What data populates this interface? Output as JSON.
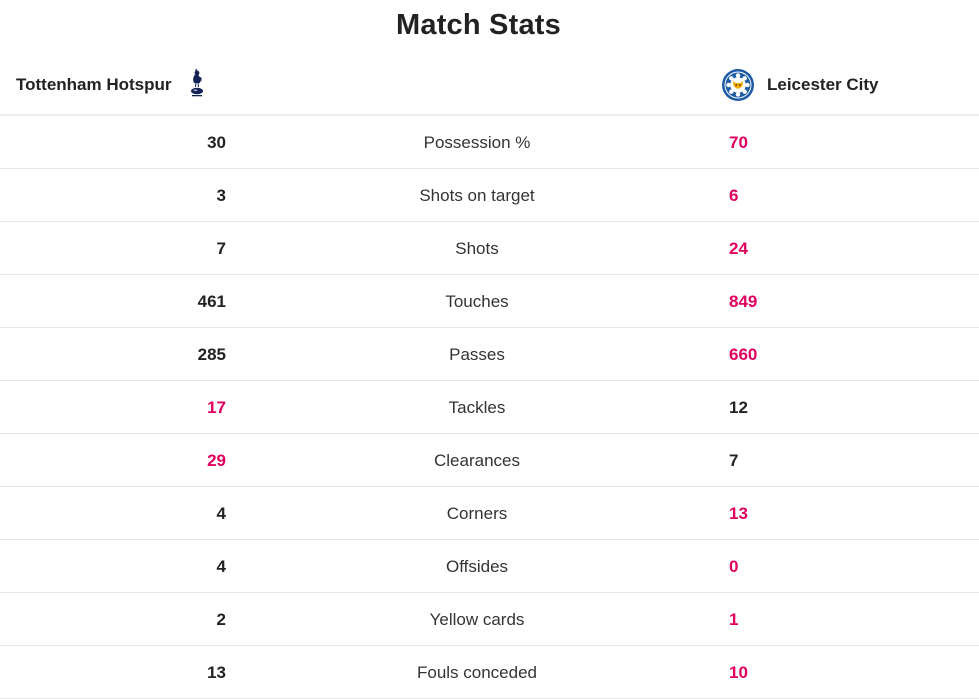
{
  "title": "Match Stats",
  "home_team": {
    "name": "Tottenham Hotspur",
    "crest_icon": "tottenham-cockerel-icon"
  },
  "away_team": {
    "name": "Leicester City",
    "crest_icon": "leicester-fox-crest-icon"
  },
  "colors": {
    "leader": "#e0005e",
    "normal": "#222222"
  },
  "stats": [
    {
      "label": "Possession %",
      "home": "30",
      "away": "70",
      "leader": "away"
    },
    {
      "label": "Shots on target",
      "home": "3",
      "away": "6",
      "leader": "away"
    },
    {
      "label": "Shots",
      "home": "7",
      "away": "24",
      "leader": "away"
    },
    {
      "label": "Touches",
      "home": "461",
      "away": "849",
      "leader": "away"
    },
    {
      "label": "Passes",
      "home": "285",
      "away": "660",
      "leader": "away"
    },
    {
      "label": "Tackles",
      "home": "17",
      "away": "12",
      "leader": "home"
    },
    {
      "label": "Clearances",
      "home": "29",
      "away": "7",
      "leader": "home"
    },
    {
      "label": "Corners",
      "home": "4",
      "away": "13",
      "leader": "away"
    },
    {
      "label": "Offsides",
      "home": "4",
      "away": "0",
      "leader": "away"
    },
    {
      "label": "Yellow cards",
      "home": "2",
      "away": "1",
      "leader": "away"
    },
    {
      "label": "Fouls conceded",
      "home": "13",
      "away": "10",
      "leader": "away"
    }
  ]
}
